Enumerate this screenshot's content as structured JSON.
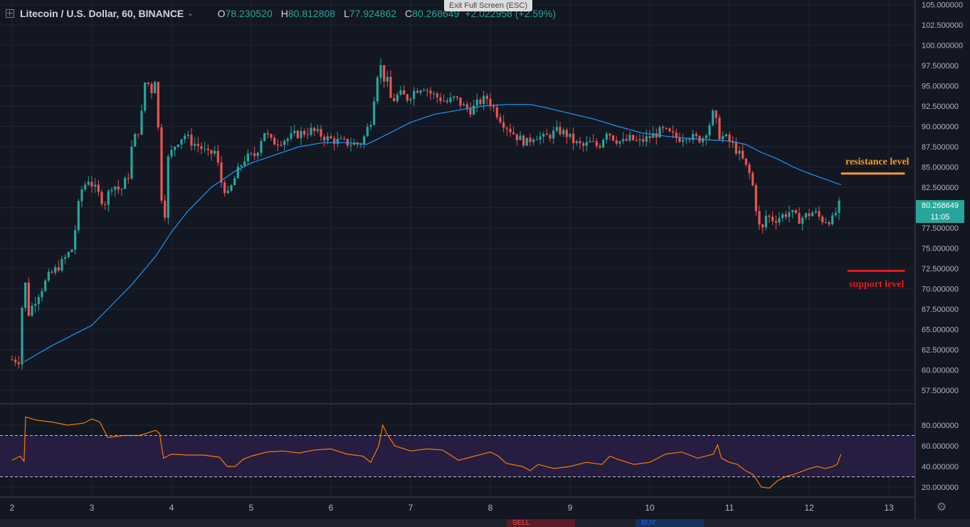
{
  "header": {
    "symbol": "Litecoin / U.S. Dollar, 60, BINANCE",
    "open_label": "O",
    "open": "78.230520",
    "high_label": "H",
    "high": "80.812808",
    "low_label": "L",
    "low": "77.924862",
    "close_label": "C",
    "close": "80.268649",
    "change": "+2.022958 (+2.59%)"
  },
  "exit_fullscreen": "Exit Full Screen (ESC)",
  "price_tag": {
    "price": "80.268649",
    "countdown": "11:05"
  },
  "annotations": {
    "resistance": "resistance level",
    "support": "support level"
  },
  "trade": {
    "sell": "SELL",
    "buy": "BUY"
  },
  "colors": {
    "up": "#26a69a",
    "down": "#ef5350",
    "ma": "#2196f3",
    "rsi": "#f57c00",
    "resistance": "#f59a23",
    "support": "#e41b17"
  },
  "chart_data": [
    {
      "type": "candlestick",
      "title": "Litecoin / U.S. Dollar, 60, BINANCE",
      "ylim": [
        57.5,
        105
      ],
      "y_ticks": [
        "105.000000",
        "102.500000",
        "100.000000",
        "97.500000",
        "95.000000",
        "92.500000",
        "90.000000",
        "87.500000",
        "85.000000",
        "82.500000",
        "80.000000",
        "77.500000",
        "75.000000",
        "72.500000",
        "70.000000",
        "67.500000",
        "65.000000",
        "62.500000",
        "60.000000",
        "57.500000"
      ],
      "x_ticks": [
        "2",
        "3",
        "4",
        "5",
        "6",
        "7",
        "8",
        "9",
        "10",
        "11",
        "12",
        "13"
      ],
      "price_path": [
        [
          2.0,
          61.3
        ],
        [
          2.15,
          61.2
        ],
        [
          2.18,
          73
        ],
        [
          2.25,
          67
        ],
        [
          2.35,
          69
        ],
        [
          2.5,
          71.5
        ],
        [
          2.65,
          73
        ],
        [
          2.8,
          75
        ],
        [
          2.9,
          82
        ],
        [
          3.0,
          83.5
        ],
        [
          3.1,
          82
        ],
        [
          3.2,
          80.5
        ],
        [
          3.3,
          83
        ],
        [
          3.4,
          82
        ],
        [
          3.5,
          84
        ],
        [
          3.55,
          88
        ],
        [
          3.65,
          90
        ],
        [
          3.72,
          96.5
        ],
        [
          3.78,
          94
        ],
        [
          3.85,
          96.5
        ],
        [
          3.9,
          83
        ],
        [
          3.95,
          78
        ],
        [
          4.0,
          86
        ],
        [
          4.1,
          88
        ],
        [
          4.2,
          89
        ],
        [
          4.3,
          88
        ],
        [
          4.4,
          87.5
        ],
        [
          4.5,
          86.5
        ],
        [
          4.6,
          87
        ],
        [
          4.65,
          83.5
        ],
        [
          4.75,
          81.5
        ],
        [
          4.85,
          84
        ],
        [
          4.95,
          86
        ],
        [
          5.1,
          86.5
        ],
        [
          5.2,
          89.5
        ],
        [
          5.3,
          88
        ],
        [
          5.5,
          88.5
        ],
        [
          5.6,
          89
        ],
        [
          5.8,
          89.5
        ],
        [
          6.0,
          88.5
        ],
        [
          6.2,
          88
        ],
        [
          6.4,
          87.8
        ],
        [
          6.45,
          88.5
        ],
        [
          6.55,
          91
        ],
        [
          6.6,
          95
        ],
        [
          6.65,
          98
        ],
        [
          6.7,
          96
        ],
        [
          6.75,
          95.5
        ],
        [
          6.8,
          93
        ],
        [
          6.9,
          94
        ],
        [
          7.0,
          93.5
        ],
        [
          7.1,
          94.5
        ],
        [
          7.2,
          95
        ],
        [
          7.3,
          94
        ],
        [
          7.4,
          93.5
        ],
        [
          7.5,
          93
        ],
        [
          7.6,
          93.5
        ],
        [
          7.7,
          92.5
        ],
        [
          7.8,
          92
        ],
        [
          7.9,
          93
        ],
        [
          8.0,
          93.5
        ],
        [
          8.1,
          92
        ],
        [
          8.2,
          90.5
        ],
        [
          8.3,
          89.5
        ],
        [
          8.4,
          88.5
        ],
        [
          8.5,
          88
        ],
        [
          8.6,
          89
        ],
        [
          8.7,
          88.5
        ],
        [
          8.8,
          89
        ],
        [
          8.9,
          89.5
        ],
        [
          9.0,
          89
        ],
        [
          9.1,
          88
        ],
        [
          9.2,
          87.5
        ],
        [
          9.3,
          88
        ],
        [
          9.4,
          87.5
        ],
        [
          9.5,
          89.5
        ],
        [
          9.6,
          88.5
        ],
        [
          9.7,
          88
        ],
        [
          9.8,
          88.5
        ],
        [
          9.9,
          88
        ],
        [
          10.0,
          88.5
        ],
        [
          10.1,
          89
        ],
        [
          10.2,
          89.5
        ],
        [
          10.3,
          89
        ],
        [
          10.4,
          88.5
        ],
        [
          10.5,
          89
        ],
        [
          10.6,
          88.5
        ],
        [
          10.7,
          88.5
        ],
        [
          10.8,
          90.5
        ],
        [
          10.85,
          92
        ],
        [
          10.9,
          89
        ],
        [
          11.0,
          88.5
        ],
        [
          11.1,
          87.5
        ],
        [
          11.2,
          86
        ],
        [
          11.3,
          84
        ],
        [
          11.35,
          82
        ],
        [
          11.4,
          78
        ],
        [
          11.45,
          77
        ],
        [
          11.5,
          79
        ],
        [
          11.6,
          78.5
        ],
        [
          11.7,
          79
        ],
        [
          11.8,
          79.5
        ],
        [
          11.9,
          78.5
        ],
        [
          12.0,
          79
        ],
        [
          12.1,
          79.5
        ],
        [
          12.2,
          78.5
        ],
        [
          12.3,
          78.5
        ],
        [
          12.35,
          78.5
        ],
        [
          12.4,
          80.27
        ]
      ],
      "series": [
        {
          "name": "Moving average",
          "type": "line",
          "points": [
            [
              2.15,
              61
            ],
            [
              2.5,
              63
            ],
            [
              2.8,
              64.5
            ],
            [
              3.0,
              65.5
            ],
            [
              3.2,
              67.5
            ],
            [
              3.5,
              70.5
            ],
            [
              3.8,
              74
            ],
            [
              4.0,
              77
            ],
            [
              4.2,
              79.5
            ],
            [
              4.5,
              82.5
            ],
            [
              4.8,
              84.5
            ],
            [
              5.0,
              85.5
            ],
            [
              5.3,
              86.5
            ],
            [
              5.6,
              87.5
            ],
            [
              5.9,
              88
            ],
            [
              6.2,
              88
            ],
            [
              6.45,
              87.8
            ],
            [
              6.6,
              88.5
            ],
            [
              6.8,
              89.5
            ],
            [
              7.0,
              90.5
            ],
            [
              7.3,
              91.5
            ],
            [
              7.6,
              92
            ],
            [
              7.9,
              92.5
            ],
            [
              8.2,
              92.7
            ],
            [
              8.5,
              92.7
            ],
            [
              8.7,
              92.3
            ],
            [
              9.0,
              91.6
            ],
            [
              9.3,
              90.9
            ],
            [
              9.6,
              90
            ],
            [
              9.9,
              89.2
            ],
            [
              10.2,
              88.8
            ],
            [
              10.5,
              88.5
            ],
            [
              10.8,
              88.3
            ],
            [
              11.0,
              88.2
            ],
            [
              11.2,
              87.8
            ],
            [
              11.4,
              86.8
            ],
            [
              11.6,
              86
            ],
            [
              11.8,
              85
            ],
            [
              12.0,
              84.2
            ],
            [
              12.2,
              83.5
            ],
            [
              12.4,
              82.8
            ]
          ]
        }
      ],
      "levels": [
        {
          "name": "resistance level",
          "value": 84.2,
          "x_start": 12.4,
          "x_end": 13.2
        },
        {
          "name": "support level",
          "value": 72.2,
          "x_start": 12.48,
          "x_end": 13.2
        }
      ],
      "last_price": 80.268649
    },
    {
      "type": "line",
      "ylim": [
        13,
        93
      ],
      "y_ticks": [
        "80.000000",
        "60.000000",
        "40.000000",
        "20.000000"
      ],
      "bands": {
        "upper": 70,
        "lower": 30
      },
      "points": [
        [
          2.0,
          46
        ],
        [
          2.1,
          50
        ],
        [
          2.15,
          45
        ],
        [
          2.17,
          88
        ],
        [
          2.3,
          85
        ],
        [
          2.5,
          83
        ],
        [
          2.7,
          80
        ],
        [
          2.9,
          82
        ],
        [
          3.0,
          86
        ],
        [
          3.1,
          83
        ],
        [
          3.2,
          68
        ],
        [
          3.4,
          70
        ],
        [
          3.6,
          70
        ],
        [
          3.8,
          75
        ],
        [
          3.85,
          72
        ],
        [
          3.9,
          48
        ],
        [
          4.0,
          52
        ],
        [
          4.2,
          51
        ],
        [
          4.4,
          51
        ],
        [
          4.6,
          49
        ],
        [
          4.7,
          40
        ],
        [
          4.8,
          40
        ],
        [
          4.9,
          47
        ],
        [
          5.0,
          50
        ],
        [
          5.2,
          54
        ],
        [
          5.4,
          55
        ],
        [
          5.6,
          53
        ],
        [
          5.8,
          56
        ],
        [
          6.0,
          57
        ],
        [
          6.2,
          52
        ],
        [
          6.4,
          50
        ],
        [
          6.5,
          44
        ],
        [
          6.6,
          60
        ],
        [
          6.65,
          80
        ],
        [
          6.7,
          72
        ],
        [
          6.8,
          60
        ],
        [
          7.0,
          55
        ],
        [
          7.2,
          57
        ],
        [
          7.4,
          56
        ],
        [
          7.6,
          46
        ],
        [
          7.8,
          50
        ],
        [
          8.0,
          54
        ],
        [
          8.1,
          50
        ],
        [
          8.2,
          43
        ],
        [
          8.4,
          40
        ],
        [
          8.5,
          36
        ],
        [
          8.6,
          42
        ],
        [
          8.8,
          38
        ],
        [
          9.0,
          40
        ],
        [
          9.2,
          44
        ],
        [
          9.4,
          42
        ],
        [
          9.5,
          50
        ],
        [
          9.6,
          47
        ],
        [
          9.8,
          42
        ],
        [
          10.0,
          44
        ],
        [
          10.2,
          52
        ],
        [
          10.4,
          54
        ],
        [
          10.6,
          48
        ],
        [
          10.8,
          52
        ],
        [
          10.85,
          61
        ],
        [
          10.9,
          48
        ],
        [
          11.0,
          44
        ],
        [
          11.1,
          42
        ],
        [
          11.2,
          36
        ],
        [
          11.3,
          32
        ],
        [
          11.4,
          20
        ],
        [
          11.5,
          19
        ],
        [
          11.6,
          26
        ],
        [
          11.7,
          30
        ],
        [
          11.8,
          32
        ],
        [
          11.9,
          35
        ],
        [
          12.0,
          38
        ],
        [
          12.1,
          40
        ],
        [
          12.2,
          38
        ],
        [
          12.3,
          40
        ],
        [
          12.35,
          42
        ],
        [
          12.4,
          52
        ]
      ]
    }
  ]
}
